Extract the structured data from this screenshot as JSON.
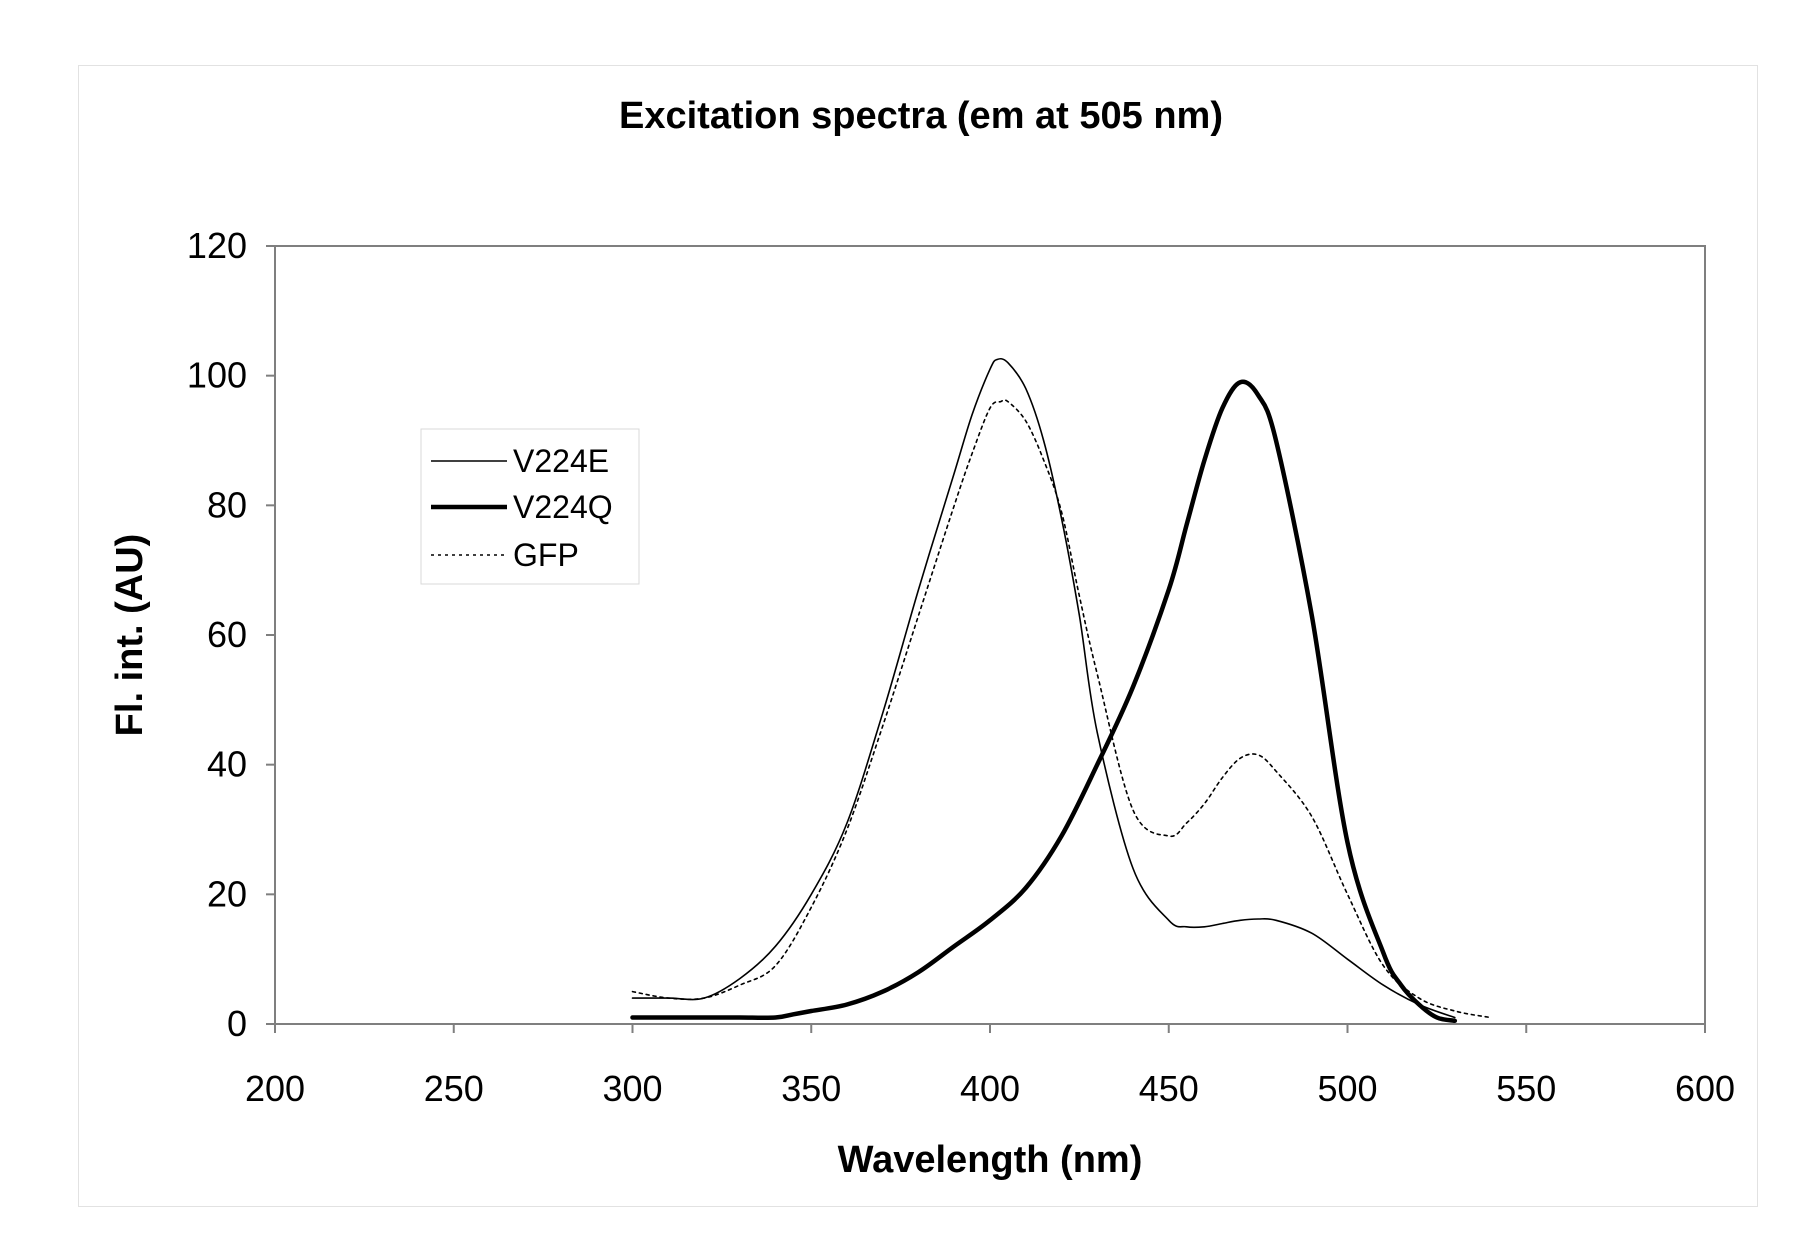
{
  "chart_data": {
    "type": "line",
    "title": "Excitation spectra (em at 505 nm)",
    "xlabel": "Wavelength (nm)",
    "ylabel": "Fl. int. (AU)",
    "xlim": [
      200,
      600
    ],
    "ylim": [
      0,
      120
    ],
    "xticks": [
      "200",
      "250",
      "300",
      "350",
      "400",
      "450",
      "500",
      "550",
      "600"
    ],
    "yticks": [
      "0",
      "20",
      "40",
      "60",
      "80",
      "100",
      "120"
    ],
    "grid": false,
    "legend_position": "upper-left",
    "series": [
      {
        "name": "V224E",
        "style": "thin",
        "x": [
          300,
          310,
          320,
          330,
          340,
          350,
          360,
          370,
          380,
          390,
          395,
          400,
          402,
          405,
          410,
          415,
          420,
          425,
          430,
          440,
          450,
          455,
          460,
          465,
          470,
          475,
          480,
          490,
          500,
          510,
          520,
          530
        ],
        "y": [
          4,
          4,
          4,
          7,
          12,
          20,
          31,
          48,
          67,
          85,
          94,
          101,
          102.5,
          102,
          98,
          90,
          78,
          63,
          45,
          24,
          16,
          15,
          15,
          15.5,
          16,
          16.2,
          16,
          14,
          10,
          6,
          3,
          1
        ]
      },
      {
        "name": "V224Q",
        "style": "thick",
        "x": [
          300,
          310,
          320,
          330,
          340,
          345,
          350,
          360,
          370,
          380,
          390,
          400,
          410,
          420,
          430,
          440,
          450,
          455,
          460,
          465,
          470,
          475,
          480,
          490,
          500,
          510,
          515,
          520,
          525,
          530
        ],
        "y": [
          1,
          1,
          1,
          1,
          1,
          1.5,
          2,
          3,
          5,
          8,
          12,
          16,
          21,
          29,
          40,
          52,
          67,
          77,
          87,
          95,
          99,
          97,
          90,
          63,
          28,
          11,
          6,
          3,
          1,
          0.5
        ]
      },
      {
        "name": "GFP",
        "style": "dotted",
        "x": [
          300,
          310,
          320,
          330,
          340,
          350,
          360,
          370,
          380,
          390,
          395,
          400,
          403,
          405,
          410,
          415,
          420,
          425,
          430,
          440,
          450,
          455,
          460,
          465,
          470,
          475,
          480,
          490,
          500,
          510,
          520,
          530,
          540
        ],
        "y": [
          5,
          4,
          4,
          6,
          9,
          18,
          30,
          46,
          63,
          80,
          88,
          95,
          96,
          96,
          93,
          87,
          79,
          66,
          54,
          33,
          29,
          31,
          34,
          38,
          41,
          41.5,
          39,
          32,
          20,
          9,
          4,
          2,
          1
        ]
      }
    ]
  }
}
